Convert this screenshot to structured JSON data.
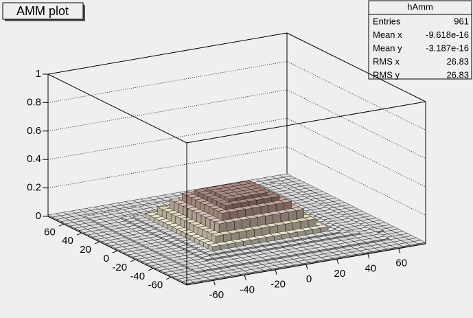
{
  "chart_data": {
    "type": "lego",
    "title": "AMM plot",
    "stats": {
      "name": "hAmm",
      "rows": [
        {
          "label": "Entries",
          "value": 961
        },
        {
          "label": "Mean x",
          "value": -9.618e-16
        },
        {
          "label": "Mean y",
          "value": -3.187e-16
        },
        {
          "label": "RMS x",
          "value": 26.83
        },
        {
          "label": "RMS y",
          "value": 26.83
        }
      ]
    },
    "xlim": [
      -77.5,
      77.5
    ],
    "ylim": [
      -77.5,
      77.5
    ],
    "zlim": [
      0,
      1
    ],
    "xticks": [
      -60,
      -40,
      -20,
      0,
      20,
      40,
      60
    ],
    "yticks": [
      -60,
      -40,
      -20,
      0,
      20,
      40,
      60
    ],
    "zticks": [
      0,
      0.2,
      0.4,
      0.6,
      0.8,
      1
    ],
    "grid": true,
    "palette": [
      "#dcdcdc",
      "#ebe5d2",
      "#e3d8bd",
      "#d8c3b3",
      "#c4a599",
      "#ab8b82"
    ],
    "z": [
      [
        0.01,
        0.01,
        0.01,
        0.01,
        0.01,
        0.01,
        0.01,
        0.01,
        0.01,
        0.01,
        0.01,
        0.01,
        0.01,
        0.01,
        0.01,
        0.01,
        0.01,
        0.01,
        0.01,
        0.01,
        0.01,
        0.01,
        0.01,
        0.01,
        0.01,
        0.01,
        0.01,
        0.01,
        0.01,
        0.01,
        0.01
      ],
      [
        0.01,
        0.01,
        0.01,
        0.01,
        0.01,
        0.01,
        0.01,
        0.01,
        0.01,
        0.01,
        0.01,
        0.01,
        0.01,
        0.01,
        0.01,
        0.01,
        0.01,
        0.01,
        0.01,
        0.01,
        0.01,
        0.01,
        0.01,
        0.01,
        0.01,
        0.01,
        0.01,
        0.01,
        0.01,
        0.01,
        0.01
      ],
      [
        0.01,
        0.01,
        0.01,
        0.01,
        0.01,
        0.01,
        0.01,
        0.01,
        0.01,
        0.01,
        0.01,
        0.01,
        0.01,
        0.01,
        0.01,
        0.01,
        0.01,
        0.01,
        0.01,
        0.01,
        0.01,
        0.01,
        0.01,
        0.01,
        0.01,
        0.01,
        0.01,
        0.01,
        0.01,
        0.01,
        0.01
      ],
      [
        0.01,
        0.01,
        0.01,
        0.02,
        0.02,
        0.02,
        0.02,
        0.02,
        0.02,
        0.02,
        0.02,
        0.02,
        0.02,
        0.02,
        0.02,
        0.02,
        0.02,
        0.02,
        0.02,
        0.02,
        0.02,
        0.02,
        0.02,
        0.02,
        0.02,
        0.02,
        0.02,
        0.02,
        0.01,
        0.01,
        0.01
      ],
      [
        0.01,
        0.01,
        0.01,
        0.02,
        0.02,
        0.02,
        0.02,
        0.02,
        0.02,
        0.02,
        0.02,
        0.02,
        0.02,
        0.02,
        0.02,
        0.02,
        0.02,
        0.02,
        0.02,
        0.02,
        0.02,
        0.02,
        0.02,
        0.02,
        0.02,
        0.02,
        0.02,
        0.02,
        0.01,
        0.01,
        0.01
      ],
      [
        0.01,
        0.01,
        0.01,
        0.02,
        0.02,
        0.02,
        0.02,
        0.02,
        0.02,
        0.02,
        0.02,
        0.02,
        0.02,
        0.02,
        0.02,
        0.02,
        0.02,
        0.02,
        0.02,
        0.02,
        0.02,
        0.02,
        0.02,
        0.02,
        0.02,
        0.02,
        0.02,
        0.02,
        0.01,
        0.01,
        0.01
      ],
      [
        0.01,
        0.01,
        0.01,
        0.02,
        0.02,
        0.02,
        0.03,
        0.03,
        0.03,
        0.03,
        0.03,
        0.03,
        0.03,
        0.03,
        0.03,
        0.03,
        0.03,
        0.03,
        0.03,
        0.03,
        0.03,
        0.03,
        0.03,
        0.03,
        0.03,
        0.03,
        0.02,
        0.02,
        0.02,
        0.01,
        0.01
      ],
      [
        0.01,
        0.01,
        0.01,
        0.02,
        0.02,
        0.02,
        0.03,
        0.04,
        0.04,
        0.04,
        0.04,
        0.04,
        0.04,
        0.04,
        0.04,
        0.04,
        0.04,
        0.04,
        0.04,
        0.04,
        0.04,
        0.04,
        0.04,
        0.04,
        0.03,
        0.02,
        0.02,
        0.02,
        0.01,
        0.01,
        0.01
      ],
      [
        0.01,
        0.01,
        0.01,
        0.02,
        0.02,
        0.02,
        0.03,
        0.04,
        0.07,
        0.07,
        0.07,
        0.07,
        0.07,
        0.07,
        0.07,
        0.07,
        0.07,
        0.07,
        0.07,
        0.07,
        0.07,
        0.07,
        0.07,
        0.04,
        0.03,
        0.02,
        0.02,
        0.02,
        0.01,
        0.01,
        0.01
      ],
      [
        0.01,
        0.01,
        0.01,
        0.02,
        0.02,
        0.02,
        0.03,
        0.04,
        0.07,
        0.12,
        0.12,
        0.12,
        0.12,
        0.12,
        0.12,
        0.12,
        0.12,
        0.12,
        0.12,
        0.12,
        0.12,
        0.12,
        0.07,
        0.04,
        0.03,
        0.02,
        0.02,
        0.02,
        0.01,
        0.01,
        0.01
      ],
      [
        0.01,
        0.01,
        0.01,
        0.02,
        0.02,
        0.02,
        0.03,
        0.04,
        0.07,
        0.12,
        0.18,
        0.18,
        0.18,
        0.18,
        0.18,
        0.18,
        0.18,
        0.18,
        0.18,
        0.18,
        0.18,
        0.12,
        0.07,
        0.04,
        0.03,
        0.02,
        0.02,
        0.02,
        0.01,
        0.01,
        0.01
      ],
      [
        0.01,
        0.01,
        0.01,
        0.02,
        0.02,
        0.02,
        0.03,
        0.04,
        0.07,
        0.12,
        0.18,
        0.23,
        0.23,
        0.23,
        0.23,
        0.23,
        0.23,
        0.23,
        0.23,
        0.23,
        0.18,
        0.12,
        0.07,
        0.04,
        0.03,
        0.02,
        0.02,
        0.02,
        0.01,
        0.01,
        0.01
      ],
      [
        0.01,
        0.01,
        0.01,
        0.02,
        0.02,
        0.02,
        0.03,
        0.04,
        0.07,
        0.12,
        0.18,
        0.23,
        0.26,
        0.26,
        0.26,
        0.26,
        0.26,
        0.26,
        0.26,
        0.23,
        0.18,
        0.12,
        0.07,
        0.04,
        0.03,
        0.02,
        0.02,
        0.02,
        0.01,
        0.01,
        0.01
      ],
      [
        0.01,
        0.01,
        0.01,
        0.02,
        0.02,
        0.02,
        0.03,
        0.04,
        0.07,
        0.12,
        0.18,
        0.23,
        0.26,
        0.28,
        0.28,
        0.28,
        0.28,
        0.28,
        0.26,
        0.23,
        0.18,
        0.12,
        0.07,
        0.04,
        0.03,
        0.02,
        0.02,
        0.02,
        0.01,
        0.01,
        0.01
      ],
      [
        0.01,
        0.01,
        0.01,
        0.02,
        0.02,
        0.02,
        0.03,
        0.04,
        0.07,
        0.12,
        0.18,
        0.23,
        0.26,
        0.28,
        0.28,
        0.28,
        0.28,
        0.28,
        0.26,
        0.23,
        0.18,
        0.12,
        0.07,
        0.04,
        0.03,
        0.02,
        0.02,
        0.02,
        0.01,
        0.01,
        0.01
      ],
      [
        0.01,
        0.01,
        0.01,
        0.02,
        0.02,
        0.02,
        0.03,
        0.04,
        0.07,
        0.12,
        0.18,
        0.23,
        0.26,
        0.28,
        0.28,
        0.28,
        0.28,
        0.28,
        0.26,
        0.23,
        0.18,
        0.12,
        0.07,
        0.04,
        0.03,
        0.02,
        0.02,
        0.02,
        0.01,
        0.01,
        0.01
      ],
      [
        0.01,
        0.01,
        0.01,
        0.02,
        0.02,
        0.02,
        0.03,
        0.04,
        0.07,
        0.12,
        0.18,
        0.23,
        0.26,
        0.28,
        0.28,
        0.28,
        0.28,
        0.28,
        0.26,
        0.23,
        0.18,
        0.12,
        0.07,
        0.04,
        0.03,
        0.02,
        0.02,
        0.02,
        0.01,
        0.01,
        0.01
      ],
      [
        0.01,
        0.01,
        0.01,
        0.02,
        0.02,
        0.02,
        0.03,
        0.04,
        0.07,
        0.12,
        0.18,
        0.23,
        0.26,
        0.28,
        0.28,
        0.28,
        0.28,
        0.28,
        0.26,
        0.23,
        0.18,
        0.12,
        0.07,
        0.04,
        0.03,
        0.02,
        0.02,
        0.02,
        0.01,
        0.01,
        0.01
      ],
      [
        0.01,
        0.01,
        0.01,
        0.02,
        0.02,
        0.02,
        0.03,
        0.04,
        0.07,
        0.12,
        0.18,
        0.23,
        0.26,
        0.26,
        0.26,
        0.26,
        0.26,
        0.26,
        0.26,
        0.23,
        0.18,
        0.12,
        0.07,
        0.04,
        0.03,
        0.02,
        0.02,
        0.02,
        0.01,
        0.01,
        0.01
      ],
      [
        0.01,
        0.01,
        0.01,
        0.02,
        0.02,
        0.02,
        0.03,
        0.04,
        0.07,
        0.12,
        0.18,
        0.23,
        0.23,
        0.23,
        0.23,
        0.23,
        0.23,
        0.23,
        0.23,
        0.23,
        0.18,
        0.12,
        0.07,
        0.04,
        0.03,
        0.02,
        0.02,
        0.02,
        0.01,
        0.01,
        0.01
      ],
      [
        0.01,
        0.01,
        0.01,
        0.02,
        0.02,
        0.02,
        0.03,
        0.04,
        0.07,
        0.12,
        0.18,
        0.18,
        0.18,
        0.18,
        0.18,
        0.18,
        0.18,
        0.18,
        0.18,
        0.18,
        0.18,
        0.12,
        0.07,
        0.04,
        0.03,
        0.02,
        0.02,
        0.02,
        0.01,
        0.01,
        0.01
      ],
      [
        0.01,
        0.01,
        0.01,
        0.02,
        0.02,
        0.02,
        0.03,
        0.04,
        0.07,
        0.12,
        0.12,
        0.12,
        0.12,
        0.12,
        0.12,
        0.12,
        0.12,
        0.12,
        0.12,
        0.12,
        0.12,
        0.12,
        0.07,
        0.04,
        0.03,
        0.02,
        0.02,
        0.02,
        0.01,
        0.01,
        0.01
      ],
      [
        0.01,
        0.01,
        0.01,
        0.02,
        0.02,
        0.02,
        0.03,
        0.04,
        0.07,
        0.07,
        0.07,
        0.07,
        0.07,
        0.07,
        0.07,
        0.07,
        0.07,
        0.07,
        0.07,
        0.07,
        0.07,
        0.07,
        0.07,
        0.04,
        0.03,
        0.02,
        0.02,
        0.02,
        0.01,
        0.01,
        0.01
      ],
      [
        0.01,
        0.01,
        0.01,
        0.02,
        0.02,
        0.02,
        0.03,
        0.04,
        0.04,
        0.04,
        0.04,
        0.04,
        0.04,
        0.04,
        0.04,
        0.04,
        0.04,
        0.04,
        0.04,
        0.04,
        0.04,
        0.04,
        0.04,
        0.04,
        0.03,
        0.02,
        0.02,
        0.02,
        0.01,
        0.01,
        0.01
      ],
      [
        0.01,
        0.01,
        0.01,
        0.02,
        0.02,
        0.02,
        0.03,
        0.03,
        0.03,
        0.03,
        0.03,
        0.03,
        0.03,
        0.03,
        0.03,
        0.03,
        0.03,
        0.03,
        0.03,
        0.03,
        0.03,
        0.03,
        0.03,
        0.03,
        0.03,
        0.02,
        0.02,
        0.02,
        0.01,
        0.01,
        0.01
      ],
      [
        0.01,
        0.01,
        0.01,
        0.02,
        0.02,
        0.02,
        0.02,
        0.02,
        0.02,
        0.02,
        0.02,
        0.02,
        0.02,
        0.02,
        0.02,
        0.02,
        0.02,
        0.02,
        0.02,
        0.02,
        0.02,
        0.02,
        0.02,
        0.02,
        0.02,
        0.02,
        0.02,
        0.02,
        0.01,
        0.01,
        0.01
      ],
      [
        0.01,
        0.01,
        0.01,
        0.02,
        0.02,
        0.02,
        0.02,
        0.02,
        0.02,
        0.02,
        0.02,
        0.02,
        0.02,
        0.02,
        0.02,
        0.02,
        0.02,
        0.02,
        0.02,
        0.02,
        0.02,
        0.02,
        0.02,
        0.02,
        0.02,
        0.02,
        0.02,
        0.02,
        0.01,
        0.01,
        0.01
      ],
      [
        0.01,
        0.01,
        0.01,
        0.02,
        0.02,
        0.02,
        0.02,
        0.02,
        0.02,
        0.02,
        0.02,
        0.02,
        0.02,
        0.02,
        0.02,
        0.02,
        0.02,
        0.02,
        0.02,
        0.02,
        0.02,
        0.02,
        0.02,
        0.02,
        0.02,
        0.02,
        0.02,
        0.02,
        0.01,
        0.01,
        0.01
      ],
      [
        0.01,
        0.01,
        0.01,
        0.01,
        0.01,
        0.01,
        0.01,
        0.01,
        0.01,
        0.01,
        0.01,
        0.01,
        0.01,
        0.01,
        0.01,
        0.01,
        0.01,
        0.01,
        0.01,
        0.01,
        0.01,
        0.01,
        0.01,
        0.01,
        0.01,
        0.01,
        0.01,
        0.01,
        0.01,
        0.01,
        0.01
      ],
      [
        0.01,
        0.01,
        0.01,
        0.01,
        0.01,
        0.01,
        0.01,
        0.01,
        0.01,
        0.01,
        0.01,
        0.01,
        0.01,
        0.01,
        0.01,
        0.01,
        0.01,
        0.01,
        0.01,
        0.01,
        0.01,
        0.01,
        0.01,
        0.01,
        0.01,
        0.01,
        0.01,
        0.01,
        0.01,
        0.01,
        0.01
      ],
      [
        0.01,
        0.01,
        0.01,
        0.01,
        0.01,
        0.01,
        0.01,
        0.01,
        0.01,
        0.01,
        0.01,
        0.01,
        0.01,
        0.01,
        0.01,
        0.01,
        0.01,
        0.01,
        0.01,
        0.01,
        0.01,
        0.01,
        0.01,
        0.01,
        0.01,
        0.01,
        0.01,
        0.01,
        0.01,
        0.01,
        0.01
      ]
    ]
  }
}
